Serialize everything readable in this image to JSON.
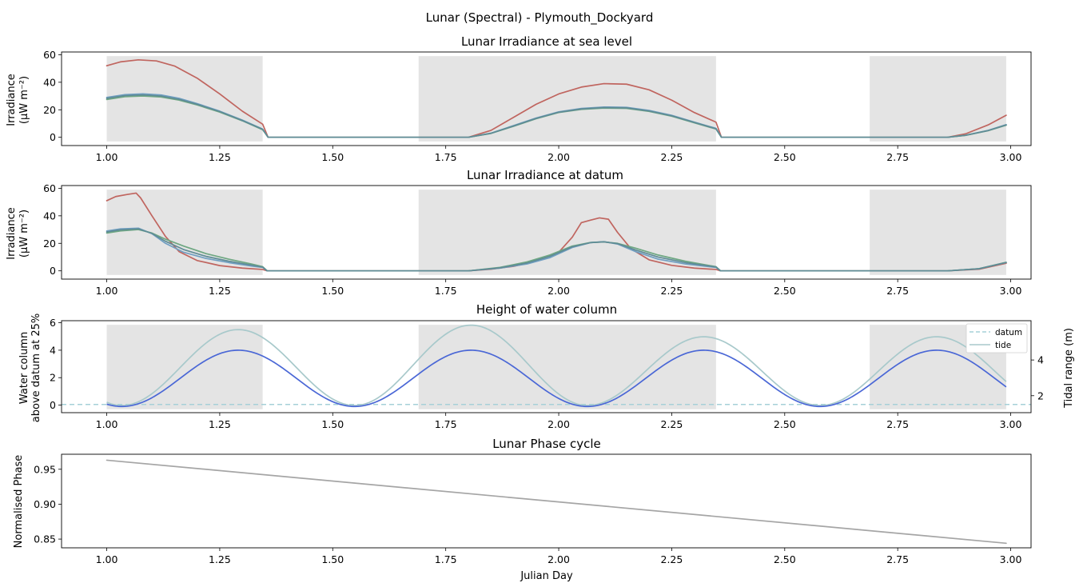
{
  "figure": {
    "title": "Lunar (Spectral) - Plymouth_Dockyard"
  },
  "colors": {
    "red": "#c0655f",
    "blue": "#6f9ec2",
    "green": "#6ea782",
    "teal": "#5f8c96",
    "tide_line": "#4a67d6",
    "tide_range": "#a8c9cb",
    "datum": "#a6d0d8",
    "phase": "#a5a5a5",
    "night": "#e4e4e4",
    "tidal_axis_label": "#5fa6a8"
  },
  "chart_data": [
    {
      "id": "sea",
      "type": "line",
      "title": "Lunar Irradiance at sea level",
      "ylabel_line1": "Irradiance",
      "ylabel_line2": "(μW m⁻²)",
      "xlim": [
        0.9,
        3.045
      ],
      "ylim": [
        -6,
        62
      ],
      "xticks": [
        "1.00",
        "1.25",
        "1.50",
        "1.75",
        "2.00",
        "2.25",
        "2.50",
        "2.75",
        "3.00"
      ],
      "yticks": [
        "0",
        "20",
        "40",
        "60"
      ],
      "night_spans": [
        [
          1.0,
          1.345
        ],
        [
          1.69,
          2.348
        ],
        [
          2.688,
          2.99
        ]
      ],
      "night_span_y": [
        -3,
        59
      ],
      "series": [
        {
          "color_key": "red",
          "points": [
            [
              1.0,
              52
            ],
            [
              1.03,
              54.8
            ],
            [
              1.07,
              56.3
            ],
            [
              1.11,
              55.5
            ],
            [
              1.15,
              51.8
            ],
            [
              1.2,
              43
            ],
            [
              1.25,
              31.5
            ],
            [
              1.3,
              19
            ],
            [
              1.345,
              9.5
            ],
            [
              1.357,
              0
            ],
            [
              1.8,
              0
            ],
            [
              1.85,
              5
            ],
            [
              1.9,
              14.5
            ],
            [
              1.95,
              24
            ],
            [
              2.0,
              31.5
            ],
            [
              2.05,
              36.5
            ],
            [
              2.1,
              39
            ],
            [
              2.15,
              38.6
            ],
            [
              2.2,
              34.5
            ],
            [
              2.25,
              27
            ],
            [
              2.3,
              18
            ],
            [
              2.348,
              11
            ],
            [
              2.36,
              0
            ],
            [
              2.86,
              0
            ],
            [
              2.9,
              2.5
            ],
            [
              2.95,
              9
            ],
            [
              2.99,
              16
            ]
          ]
        },
        {
          "color_key": "blue",
          "points": [
            [
              1.0,
              29
            ],
            [
              1.04,
              31
            ],
            [
              1.08,
              31.6
            ],
            [
              1.12,
              30.8
            ],
            [
              1.16,
              28.3
            ],
            [
              1.2,
              24.5
            ],
            [
              1.25,
              19
            ],
            [
              1.3,
              12.5
            ],
            [
              1.345,
              6
            ],
            [
              1.357,
              0
            ],
            [
              1.8,
              0
            ],
            [
              1.85,
              3
            ],
            [
              1.9,
              8.5
            ],
            [
              1.95,
              14
            ],
            [
              2.0,
              18.5
            ],
            [
              2.05,
              21
            ],
            [
              2.1,
              22
            ],
            [
              2.15,
              21.8
            ],
            [
              2.2,
              19.5
            ],
            [
              2.25,
              16
            ],
            [
              2.3,
              11
            ],
            [
              2.348,
              6.5
            ],
            [
              2.36,
              0
            ],
            [
              2.86,
              0
            ],
            [
              2.9,
              1.5
            ],
            [
              2.95,
              5
            ],
            [
              2.99,
              9.2
            ]
          ]
        },
        {
          "color_key": "green",
          "points": [
            [
              1.0,
              27.5
            ],
            [
              1.04,
              29.5
            ],
            [
              1.08,
              30
            ],
            [
              1.12,
              29.3
            ],
            [
              1.16,
              27
            ],
            [
              1.2,
              23.5
            ],
            [
              1.25,
              18.3
            ],
            [
              1.3,
              12
            ],
            [
              1.345,
              5.5
            ],
            [
              1.357,
              0
            ],
            [
              1.8,
              0
            ],
            [
              1.85,
              2.8
            ],
            [
              1.9,
              8
            ],
            [
              1.95,
              13.5
            ],
            [
              2.0,
              18
            ],
            [
              2.05,
              20.3
            ],
            [
              2.1,
              21.2
            ],
            [
              2.15,
              21
            ],
            [
              2.2,
              18.8
            ],
            [
              2.25,
              15.3
            ],
            [
              2.3,
              10.5
            ],
            [
              2.348,
              6
            ],
            [
              2.36,
              0
            ],
            [
              2.86,
              0
            ],
            [
              2.9,
              1.4
            ],
            [
              2.95,
              4.8
            ],
            [
              2.99,
              8.8
            ]
          ]
        },
        {
          "color_key": "teal",
          "points": [
            [
              1.0,
              28.3
            ],
            [
              1.04,
              30.3
            ],
            [
              1.08,
              30.8
            ],
            [
              1.12,
              30
            ],
            [
              1.16,
              27.6
            ],
            [
              1.2,
              24
            ],
            [
              1.25,
              18.7
            ],
            [
              1.3,
              12.2
            ],
            [
              1.345,
              5.8
            ],
            [
              1.357,
              0
            ],
            [
              1.8,
              0
            ],
            [
              1.85,
              2.9
            ],
            [
              1.9,
              8.2
            ],
            [
              1.95,
              13.7
            ],
            [
              2.0,
              18.2
            ],
            [
              2.05,
              20.6
            ],
            [
              2.1,
              21.6
            ],
            [
              2.15,
              21.4
            ],
            [
              2.2,
              19.1
            ],
            [
              2.25,
              15.6
            ],
            [
              2.3,
              10.8
            ],
            [
              2.348,
              6.2
            ],
            [
              2.36,
              0
            ],
            [
              2.86,
              0
            ],
            [
              2.9,
              1.45
            ],
            [
              2.95,
              4.9
            ],
            [
              2.99,
              9
            ]
          ]
        }
      ]
    },
    {
      "id": "datum",
      "type": "line",
      "title": "Lunar Irradiance at datum",
      "ylabel_line1": "Irradiance",
      "ylabel_line2": "(μW m⁻²)",
      "xlim": [
        0.9,
        3.045
      ],
      "ylim": [
        -6,
        62
      ],
      "xticks": [
        "1.00",
        "1.25",
        "1.50",
        "1.75",
        "2.00",
        "2.25",
        "2.50",
        "2.75",
        "3.00"
      ],
      "yticks": [
        "0",
        "20",
        "40",
        "60"
      ],
      "night_spans": [
        [
          1.0,
          1.345
        ],
        [
          1.69,
          2.348
        ],
        [
          2.688,
          2.99
        ]
      ],
      "night_span_y": [
        -3,
        59
      ],
      "series": [
        {
          "color_key": "red",
          "points": [
            [
              1.0,
              51
            ],
            [
              1.02,
              54
            ],
            [
              1.045,
              55.5
            ],
            [
              1.065,
              56.5
            ],
            [
              1.075,
              53
            ],
            [
              1.1,
              40
            ],
            [
              1.13,
              25
            ],
            [
              1.16,
              14
            ],
            [
              1.2,
              7.5
            ],
            [
              1.25,
              3.8
            ],
            [
              1.3,
              2
            ],
            [
              1.345,
              1
            ],
            [
              1.355,
              0
            ],
            [
              1.8,
              0
            ],
            [
              1.85,
              1.2
            ],
            [
              1.9,
              3.3
            ],
            [
              1.95,
              7
            ],
            [
              2.0,
              13.5
            ],
            [
              2.03,
              24.5
            ],
            [
              2.05,
              35
            ],
            [
              2.07,
              36.8
            ],
            [
              2.09,
              38.5
            ],
            [
              2.11,
              37.5
            ],
            [
              2.13,
              28
            ],
            [
              2.16,
              16
            ],
            [
              2.2,
              8
            ],
            [
              2.25,
              4
            ],
            [
              2.3,
              2
            ],
            [
              2.348,
              1
            ],
            [
              2.358,
              0
            ],
            [
              2.86,
              0
            ],
            [
              2.93,
              1.2
            ],
            [
              2.99,
              5.5
            ]
          ]
        },
        {
          "color_key": "blue",
          "points": [
            [
              1.0,
              29
            ],
            [
              1.03,
              30.5
            ],
            [
              1.07,
              31
            ],
            [
              1.1,
              27
            ],
            [
              1.13,
              20
            ],
            [
              1.17,
              13.5
            ],
            [
              1.22,
              9
            ],
            [
              1.27,
              6
            ],
            [
              1.32,
              3.5
            ],
            [
              1.345,
              2.5
            ],
            [
              1.355,
              0
            ],
            [
              1.8,
              0
            ],
            [
              1.87,
              2
            ],
            [
              1.93,
              5
            ],
            [
              1.98,
              9.5
            ],
            [
              2.03,
              17
            ],
            [
              2.07,
              20.5
            ],
            [
              2.1,
              21.2
            ],
            [
              2.13,
              19.5
            ],
            [
              2.17,
              14
            ],
            [
              2.22,
              8.5
            ],
            [
              2.28,
              5
            ],
            [
              2.348,
              2.5
            ],
            [
              2.358,
              0
            ],
            [
              2.86,
              0
            ],
            [
              2.93,
              1.5
            ],
            [
              2.99,
              6
            ]
          ]
        },
        {
          "color_key": "green",
          "points": [
            [
              1.0,
              27.5
            ],
            [
              1.03,
              29
            ],
            [
              1.07,
              30
            ],
            [
              1.1,
              27.5
            ],
            [
              1.13,
              23
            ],
            [
              1.17,
              18
            ],
            [
              1.22,
              12.5
            ],
            [
              1.27,
              8.5
            ],
            [
              1.32,
              5
            ],
            [
              1.345,
              3
            ],
            [
              1.355,
              0
            ],
            [
              1.8,
              0
            ],
            [
              1.87,
              2.5
            ],
            [
              1.93,
              6.5
            ],
            [
              1.98,
              11.5
            ],
            [
              2.03,
              18
            ],
            [
              2.07,
              20.6
            ],
            [
              2.1,
              21
            ],
            [
              2.13,
              20
            ],
            [
              2.17,
              16.5
            ],
            [
              2.22,
              11.5
            ],
            [
              2.28,
              7
            ],
            [
              2.348,
              3
            ],
            [
              2.358,
              0
            ],
            [
              2.86,
              0
            ],
            [
              2.93,
              1.6
            ],
            [
              2.99,
              6.2
            ]
          ]
        },
        {
          "color_key": "teal",
          "points": [
            [
              1.0,
              28.3
            ],
            [
              1.03,
              29.8
            ],
            [
              1.07,
              30.5
            ],
            [
              1.1,
              27.2
            ],
            [
              1.13,
              21.5
            ],
            [
              1.17,
              15.5
            ],
            [
              1.22,
              10.5
            ],
            [
              1.27,
              7
            ],
            [
              1.32,
              4.2
            ],
            [
              1.345,
              2.7
            ],
            [
              1.355,
              0
            ],
            [
              1.8,
              0
            ],
            [
              1.87,
              2.2
            ],
            [
              1.93,
              5.7
            ],
            [
              1.98,
              10.5
            ],
            [
              2.03,
              17.5
            ],
            [
              2.07,
              20.5
            ],
            [
              2.1,
              21.1
            ],
            [
              2.13,
              19.8
            ],
            [
              2.17,
              15.2
            ],
            [
              2.22,
              10
            ],
            [
              2.28,
              6
            ],
            [
              2.348,
              2.8
            ],
            [
              2.358,
              0
            ],
            [
              2.86,
              0
            ],
            [
              2.93,
              1.55
            ],
            [
              2.99,
              6.1
            ]
          ]
        }
      ]
    },
    {
      "id": "water",
      "type": "line",
      "title": "Height of water column",
      "ylabel_line1": "Water column",
      "ylabel_line2": "above datum at 25%",
      "y2label": "Tidal range (m)",
      "xlim": [
        0.9,
        3.045
      ],
      "ylim": [
        -0.55,
        6.15
      ],
      "xticks": [
        "1.00",
        "1.25",
        "1.50",
        "1.75",
        "2.00",
        "2.25",
        "2.50",
        "2.75",
        "3.00"
      ],
      "yticks": [
        "0",
        "2",
        "4",
        "6"
      ],
      "y2lim": [
        1.05,
        6.2
      ],
      "y2ticks": [
        "2",
        "4"
      ],
      "night_spans": [
        [
          1.0,
          1.345
        ],
        [
          1.69,
          2.348
        ],
        [
          2.688,
          2.99
        ]
      ],
      "night_span_y": [
        -0.3,
        5.85
      ],
      "datum_level": 0.05,
      "legend": [
        "datum",
        "tide"
      ],
      "tide_period": 0.515,
      "tide_phase": 0.776,
      "tide_amplitude": 2.05,
      "tide_mean": 1.95,
      "range_trough": 1.45,
      "range_peaks": [
        5.95,
        5.7,
        5.95,
        5.3
      ]
    },
    {
      "id": "phase",
      "type": "line",
      "title": "Lunar Phase cycle",
      "ylabel": "Normalised Phase",
      "xlabel": "Julian Day",
      "xlim": [
        0.9,
        3.045
      ],
      "ylim": [
        0.8375,
        0.9715
      ],
      "xticks": [
        "1.00",
        "1.25",
        "1.50",
        "1.75",
        "2.00",
        "2.25",
        "2.50",
        "2.75",
        "3.00"
      ],
      "yticks": [
        "0.85",
        "0.90",
        "0.95"
      ],
      "series": [
        {
          "color_key": "phase",
          "points": [
            [
              1.0,
              0.963
            ],
            [
              2.99,
              0.844
            ]
          ]
        }
      ]
    }
  ]
}
